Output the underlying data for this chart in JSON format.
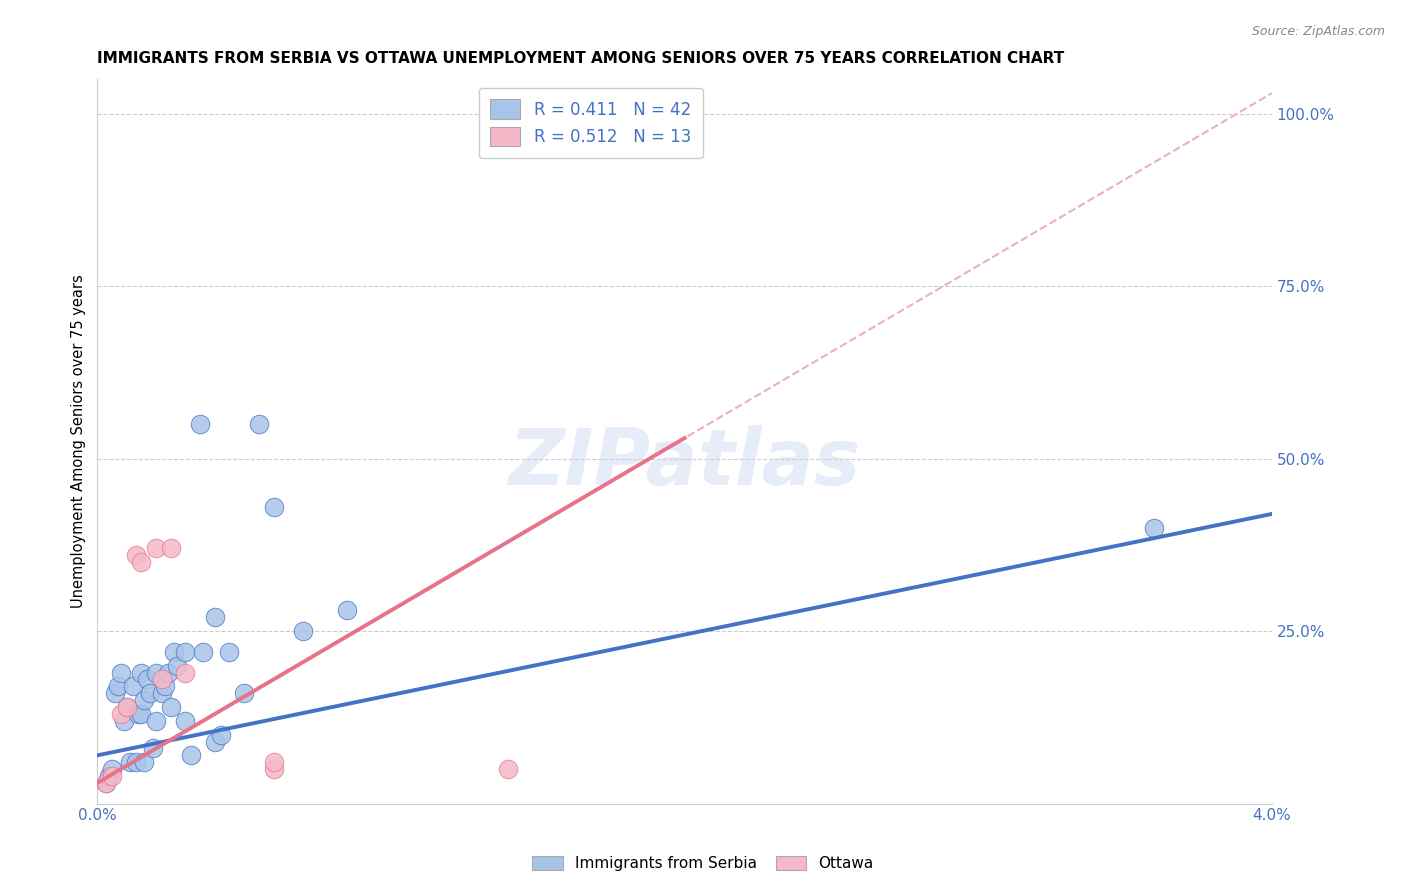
{
  "title": "IMMIGRANTS FROM SERBIA VS OTTAWA UNEMPLOYMENT AMONG SENIORS OVER 75 YEARS CORRELATION CHART",
  "source": "Source: ZipAtlas.com",
  "ylabel": "Unemployment Among Seniors over 75 years",
  "xlim": [
    0.0,
    0.04
  ],
  "ylim": [
    0.0,
    1.05
  ],
  "x_ticks": [
    0.0,
    0.005,
    0.01,
    0.015,
    0.02,
    0.025,
    0.03,
    0.035,
    0.04
  ],
  "y_ticks_right": [
    0.0,
    0.25,
    0.5,
    0.75,
    1.0
  ],
  "y_tick_labels_right": [
    "",
    "25.0%",
    "50.0%",
    "75.0%",
    "100.0%"
  ],
  "R1": "0.411",
  "N1": "42",
  "R2": "0.512",
  "N2": "13",
  "series1_color": "#a8c4e8",
  "series2_color": "#f5b8c8",
  "line1_color": "#4472c4",
  "line2_color": "#e8728a",
  "dashed_color": "#e8b0c0",
  "watermark": "ZIPatlas",
  "blue_scatter_x": [
    0.0003,
    0.0004,
    0.0005,
    0.0006,
    0.0007,
    0.0008,
    0.0009,
    0.001,
    0.0011,
    0.0012,
    0.0013,
    0.0014,
    0.0015,
    0.0015,
    0.0016,
    0.0016,
    0.0017,
    0.0018,
    0.0019,
    0.002,
    0.002,
    0.0022,
    0.0023,
    0.0024,
    0.0025,
    0.0026,
    0.0027,
    0.003,
    0.003,
    0.0032,
    0.0035,
    0.0036,
    0.004,
    0.004,
    0.0042,
    0.0045,
    0.005,
    0.0055,
    0.006,
    0.007,
    0.0085,
    0.036
  ],
  "blue_scatter_y": [
    0.03,
    0.04,
    0.05,
    0.16,
    0.17,
    0.19,
    0.12,
    0.14,
    0.06,
    0.17,
    0.06,
    0.13,
    0.13,
    0.19,
    0.06,
    0.15,
    0.18,
    0.16,
    0.08,
    0.12,
    0.19,
    0.16,
    0.17,
    0.19,
    0.14,
    0.22,
    0.2,
    0.22,
    0.12,
    0.07,
    0.55,
    0.22,
    0.27,
    0.09,
    0.1,
    0.22,
    0.16,
    0.55,
    0.43,
    0.25,
    0.28,
    0.4
  ],
  "pink_scatter_x": [
    0.0003,
    0.0005,
    0.0008,
    0.001,
    0.0013,
    0.0015,
    0.002,
    0.0022,
    0.0025,
    0.003,
    0.006,
    0.006,
    0.014
  ],
  "pink_scatter_y": [
    0.03,
    0.04,
    0.13,
    0.14,
    0.36,
    0.35,
    0.37,
    0.18,
    0.37,
    0.19,
    0.05,
    0.06,
    0.05
  ],
  "blue_line_x": [
    0.0,
    0.04
  ],
  "blue_line_y": [
    0.07,
    0.42
  ],
  "pink_line_x": [
    0.0,
    0.02
  ],
  "pink_line_y": [
    0.03,
    0.53
  ],
  "dashed_line_x": [
    0.0,
    0.04
  ],
  "dashed_line_y": [
    0.03,
    1.03
  ]
}
